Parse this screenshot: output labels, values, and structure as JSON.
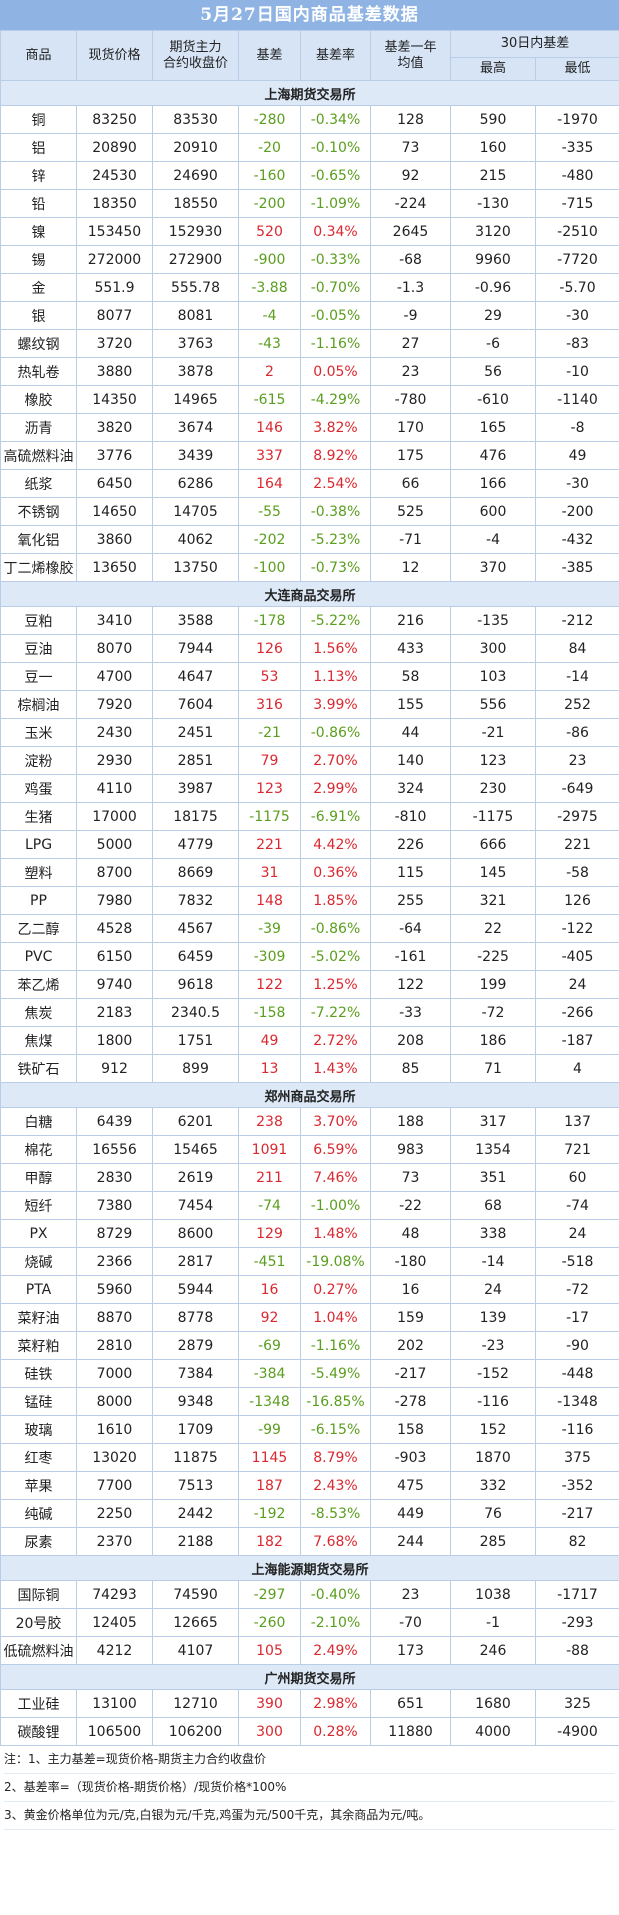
{
  "title": "5月27日国内商品基差数据",
  "headers": {
    "commodity": "商品",
    "spot": "现货价格",
    "futures_l1": "期货主力",
    "futures_l2": "合约收盘价",
    "basis": "基差",
    "basis_rate": "基差率",
    "avg_l1": "基差一年",
    "avg_l2": "均值",
    "range30": "30日内基差",
    "high": "最高",
    "low": "最低"
  },
  "sections": [
    {
      "name": "上海期货交易所",
      "rows": [
        [
          "铜",
          "83250",
          "83530",
          "-280",
          "-0.34%",
          "128",
          "590",
          "-1970"
        ],
        [
          "铝",
          "20890",
          "20910",
          "-20",
          "-0.10%",
          "73",
          "160",
          "-335"
        ],
        [
          "锌",
          "24530",
          "24690",
          "-160",
          "-0.65%",
          "92",
          "215",
          "-480"
        ],
        [
          "铅",
          "18350",
          "18550",
          "-200",
          "-1.09%",
          "-224",
          "-130",
          "-715"
        ],
        [
          "镍",
          "153450",
          "152930",
          "520",
          "0.34%",
          "2645",
          "3120",
          "-2510"
        ],
        [
          "锡",
          "272000",
          "272900",
          "-900",
          "-0.33%",
          "-68",
          "9960",
          "-7720"
        ],
        [
          "金",
          "551.9",
          "555.78",
          "-3.88",
          "-0.70%",
          "-1.3",
          "-0.96",
          "-5.70"
        ],
        [
          "银",
          "8077",
          "8081",
          "-4",
          "-0.05%",
          "-9",
          "29",
          "-30"
        ],
        [
          "螺纹钢",
          "3720",
          "3763",
          "-43",
          "-1.16%",
          "27",
          "-6",
          "-83"
        ],
        [
          "热轧卷",
          "3880",
          "3878",
          "2",
          "0.05%",
          "23",
          "56",
          "-10"
        ],
        [
          "橡胶",
          "14350",
          "14965",
          "-615",
          "-4.29%",
          "-780",
          "-610",
          "-1140"
        ],
        [
          "沥青",
          "3820",
          "3674",
          "146",
          "3.82%",
          "170",
          "165",
          "-8"
        ],
        [
          "高硫燃料油",
          "3776",
          "3439",
          "337",
          "8.92%",
          "175",
          "476",
          "49"
        ],
        [
          "纸浆",
          "6450",
          "6286",
          "164",
          "2.54%",
          "66",
          "166",
          "-30"
        ],
        [
          "不锈钢",
          "14650",
          "14705",
          "-55",
          "-0.38%",
          "525",
          "600",
          "-200"
        ],
        [
          "氧化铝",
          "3860",
          "4062",
          "-202",
          "-5.23%",
          "-71",
          "-4",
          "-432"
        ],
        [
          "丁二烯橡胶",
          "13650",
          "13750",
          "-100",
          "-0.73%",
          "12",
          "370",
          "-385"
        ]
      ]
    },
    {
      "name": "大连商品交易所",
      "rows": [
        [
          "豆粕",
          "3410",
          "3588",
          "-178",
          "-5.22%",
          "216",
          "-135",
          "-212"
        ],
        [
          "豆油",
          "8070",
          "7944",
          "126",
          "1.56%",
          "433",
          "300",
          "84"
        ],
        [
          "豆一",
          "4700",
          "4647",
          "53",
          "1.13%",
          "58",
          "103",
          "-14"
        ],
        [
          "棕榈油",
          "7920",
          "7604",
          "316",
          "3.99%",
          "155",
          "556",
          "252"
        ],
        [
          "玉米",
          "2430",
          "2451",
          "-21",
          "-0.86%",
          "44",
          "-21",
          "-86"
        ],
        [
          "淀粉",
          "2930",
          "2851",
          "79",
          "2.70%",
          "140",
          "123",
          "23"
        ],
        [
          "鸡蛋",
          "4110",
          "3987",
          "123",
          "2.99%",
          "324",
          "230",
          "-649"
        ],
        [
          "生猪",
          "17000",
          "18175",
          "-1175",
          "-6.91%",
          "-810",
          "-1175",
          "-2975"
        ],
        [
          "LPG",
          "5000",
          "4779",
          "221",
          "4.42%",
          "226",
          "666",
          "221"
        ],
        [
          "塑料",
          "8700",
          "8669",
          "31",
          "0.36%",
          "115",
          "145",
          "-58"
        ],
        [
          "PP",
          "7980",
          "7832",
          "148",
          "1.85%",
          "255",
          "321",
          "126"
        ],
        [
          "乙二醇",
          "4528",
          "4567",
          "-39",
          "-0.86%",
          "-64",
          "22",
          "-122"
        ],
        [
          "PVC",
          "6150",
          "6459",
          "-309",
          "-5.02%",
          "-161",
          "-225",
          "-405"
        ],
        [
          "苯乙烯",
          "9740",
          "9618",
          "122",
          "1.25%",
          "122",
          "199",
          "24"
        ],
        [
          "焦炭",
          "2183",
          "2340.5",
          "-158",
          "-7.22%",
          "-33",
          "-72",
          "-266"
        ],
        [
          "焦煤",
          "1800",
          "1751",
          "49",
          "2.72%",
          "208",
          "186",
          "-187"
        ],
        [
          "铁矿石",
          "912",
          "899",
          "13",
          "1.43%",
          "85",
          "71",
          "4"
        ]
      ]
    },
    {
      "name": "郑州商品交易所",
      "rows": [
        [
          "白糖",
          "6439",
          "6201",
          "238",
          "3.70%",
          "188",
          "317",
          "137"
        ],
        [
          "棉花",
          "16556",
          "15465",
          "1091",
          "6.59%",
          "983",
          "1354",
          "721"
        ],
        [
          "甲醇",
          "2830",
          "2619",
          "211",
          "7.46%",
          "73",
          "351",
          "60"
        ],
        [
          "短纤",
          "7380",
          "7454",
          "-74",
          "-1.00%",
          "-22",
          "68",
          "-74"
        ],
        [
          "PX",
          "8729",
          "8600",
          "129",
          "1.48%",
          "48",
          "338",
          "24"
        ],
        [
          "烧碱",
          "2366",
          "2817",
          "-451",
          "-19.08%",
          "-180",
          "-14",
          "-518"
        ],
        [
          "PTA",
          "5960",
          "5944",
          "16",
          "0.27%",
          "16",
          "24",
          "-72"
        ],
        [
          "菜籽油",
          "8870",
          "8778",
          "92",
          "1.04%",
          "159",
          "139",
          "-17"
        ],
        [
          "菜籽粕",
          "2810",
          "2879",
          "-69",
          "-1.16%",
          "202",
          "-23",
          "-90"
        ],
        [
          "硅铁",
          "7000",
          "7384",
          "-384",
          "-5.49%",
          "-217",
          "-152",
          "-448"
        ],
        [
          "锰硅",
          "8000",
          "9348",
          "-1348",
          "-16.85%",
          "-278",
          "-116",
          "-1348"
        ],
        [
          "玻璃",
          "1610",
          "1709",
          "-99",
          "-6.15%",
          "158",
          "152",
          "-116"
        ],
        [
          "红枣",
          "13020",
          "11875",
          "1145",
          "8.79%",
          "-903",
          "1870",
          "375"
        ],
        [
          "苹果",
          "7700",
          "7513",
          "187",
          "2.43%",
          "475",
          "332",
          "-352"
        ],
        [
          "纯碱",
          "2250",
          "2442",
          "-192",
          "-8.53%",
          "449",
          "76",
          "-217"
        ],
        [
          "尿素",
          "2370",
          "2188",
          "182",
          "7.68%",
          "244",
          "285",
          "82"
        ]
      ]
    },
    {
      "name": "上海能源期货交易所",
      "rows": [
        [
          "国际铜",
          "74293",
          "74590",
          "-297",
          "-0.40%",
          "23",
          "1038",
          "-1717"
        ],
        [
          "20号胶",
          "12405",
          "12665",
          "-260",
          "-2.10%",
          "-70",
          "-1",
          "-293"
        ],
        [
          "低硫燃料油",
          "4212",
          "4107",
          "105",
          "2.49%",
          "173",
          "246",
          "-88"
        ]
      ]
    },
    {
      "name": "广州期货交易所",
      "rows": [
        [
          "工业硅",
          "13100",
          "12710",
          "390",
          "2.98%",
          "651",
          "1680",
          "325"
        ],
        [
          "碳酸锂",
          "106500",
          "106200",
          "300",
          "0.28%",
          "11880",
          "4000",
          "-4900"
        ]
      ]
    }
  ],
  "notes": [
    "注：1、主力基差=现货价格-期货主力合约收盘价",
    "2、基差率=（现货价格-期货价格）/现货价格*100%",
    "3、黄金价格单位为元/克,白银为元/千克,鸡蛋为元/500千克，其余商品为元/吨。"
  ]
}
